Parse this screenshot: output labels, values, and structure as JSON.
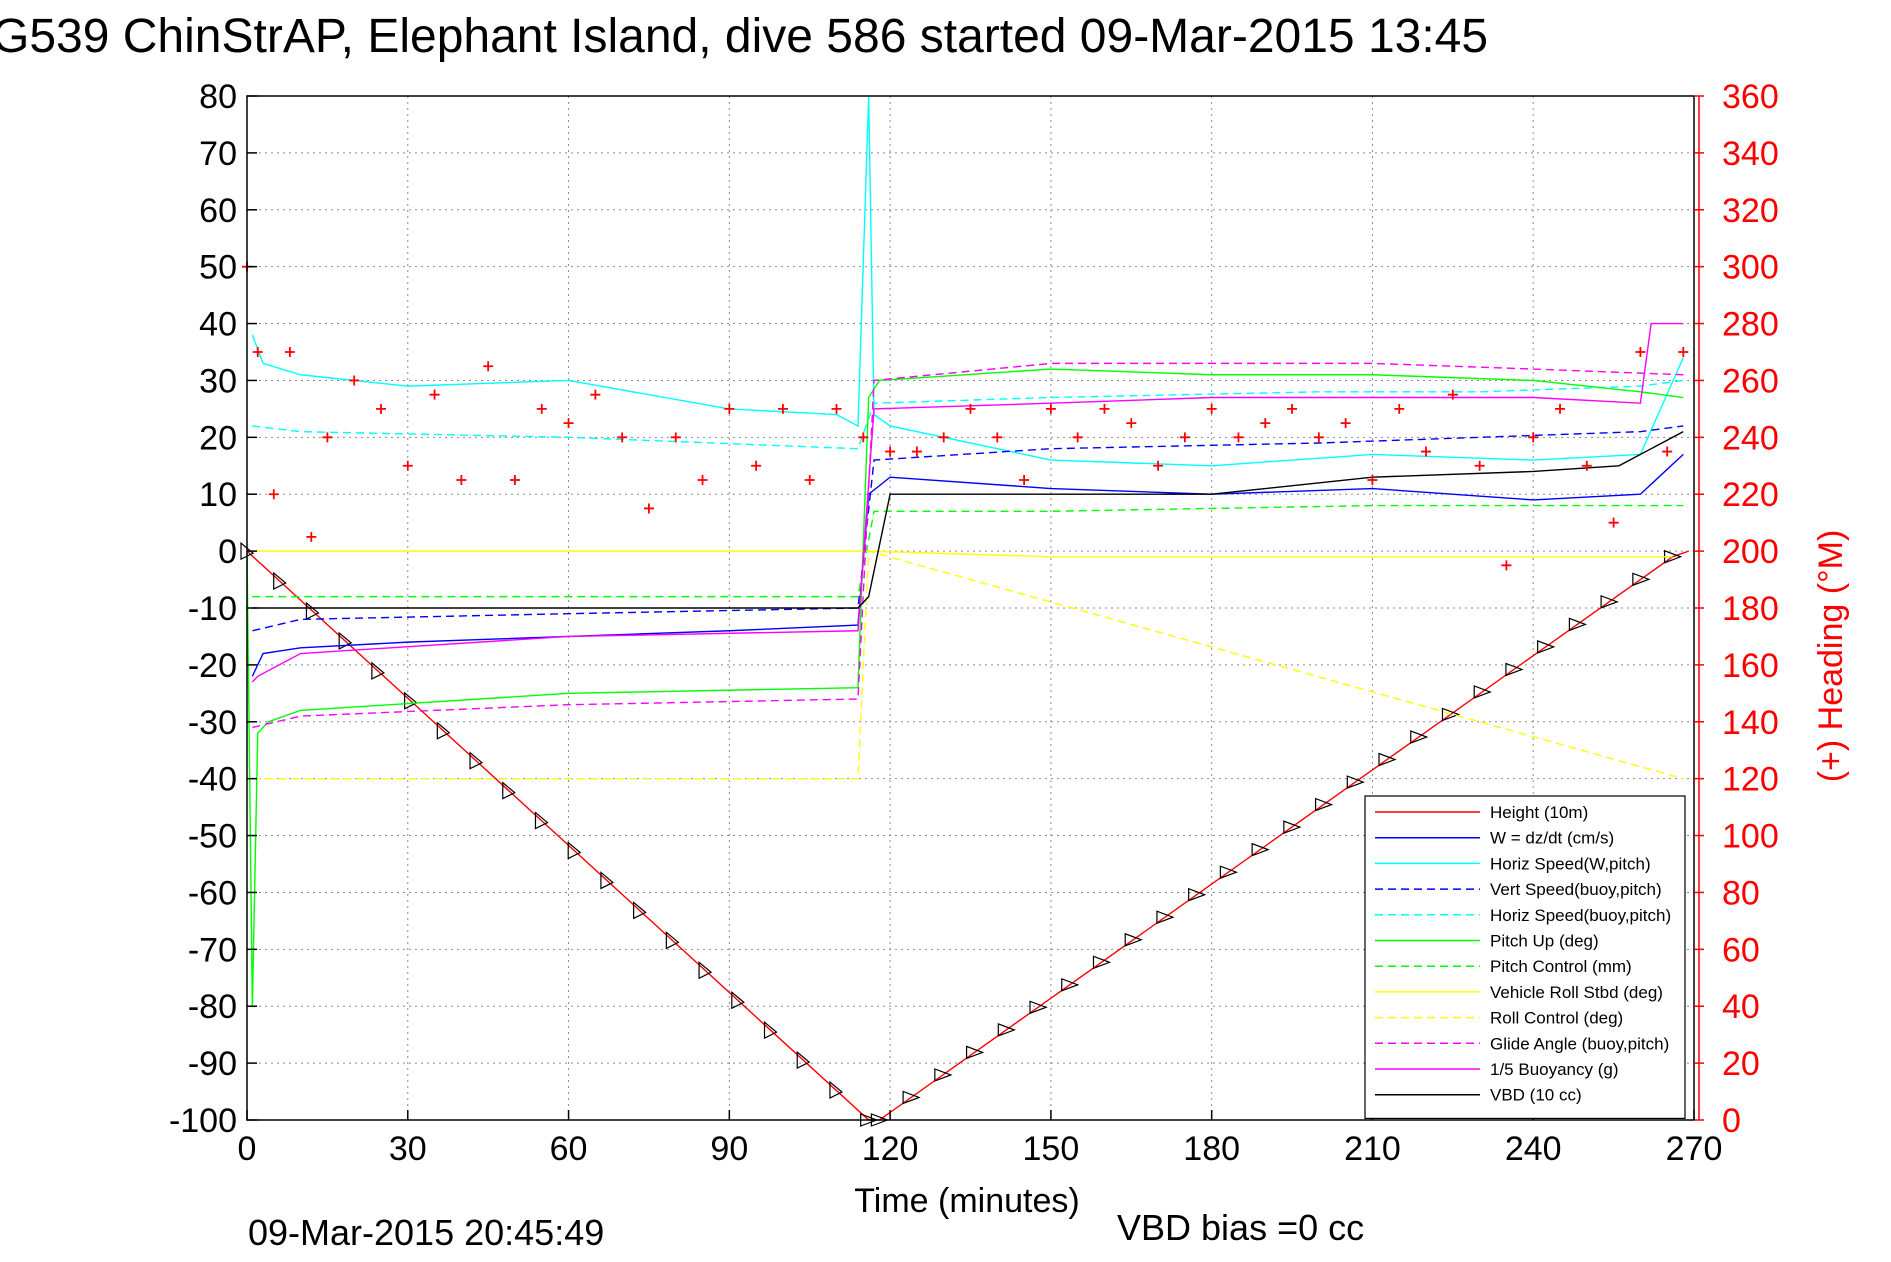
{
  "chart_data": {
    "type": "line",
    "title": "G539 ChinStrAP, Elephant Island, dive 586 started 09-Mar-2015 13:45",
    "xlabel": "Time (minutes)",
    "ylabel_right": "(+) Heading (°M)",
    "footer_left": "09-Mar-2015 20:45:49",
    "footer_right": "VBD bias =0 cc",
    "xlim": [
      0,
      270
    ],
    "ylim": [
      -100,
      80
    ],
    "ylim_right": [
      0,
      360
    ],
    "x_ticks": [
      0,
      30,
      60,
      90,
      120,
      150,
      180,
      210,
      240,
      270
    ],
    "y_ticks": [
      80,
      70,
      60,
      50,
      40,
      30,
      20,
      10,
      0,
      -10,
      -20,
      -30,
      -40,
      -50,
      -60,
      -70,
      -80,
      -90,
      -100
    ],
    "y_ticks_right": [
      360,
      340,
      320,
      300,
      280,
      260,
      240,
      220,
      200,
      180,
      160,
      140,
      120,
      100,
      80,
      60,
      40,
      20,
      0
    ],
    "grid": true,
    "legend_position": "bottom-right",
    "series": [
      {
        "name": "Height (10m)",
        "color": "#ff0000",
        "style": "solid",
        "x": [
          0,
          116,
          118,
          266,
          269
        ],
        "y": [
          0,
          -100,
          -100,
          -1,
          0
        ]
      },
      {
        "name": "W = dz/dt (cm/s)",
        "color": "#0000ff",
        "style": "solid",
        "x": [
          1,
          3,
          10,
          30,
          60,
          90,
          114,
          116,
          120,
          150,
          180,
          210,
          240,
          260,
          268
        ],
        "y": [
          -22,
          -18,
          -17,
          -16,
          -15,
          -14,
          -13,
          10,
          13,
          11,
          10,
          11,
          9,
          10,
          17
        ]
      },
      {
        "name": "Horiz Speed(W,pitch)",
        "color": "#00ffff",
        "style": "solid",
        "x": [
          1,
          3,
          10,
          30,
          60,
          90,
          110,
          114,
          116,
          117,
          120,
          150,
          180,
          210,
          240,
          260,
          268
        ],
        "y": [
          38,
          33,
          31,
          29,
          30,
          25,
          24,
          22,
          80,
          24,
          22,
          16,
          15,
          17,
          16,
          17,
          34
        ]
      },
      {
        "name": "Vert Speed(buoy,pitch)",
        "color": "#0000ff",
        "style": "dashed",
        "x": [
          1,
          10,
          60,
          114,
          117,
          150,
          200,
          230,
          260,
          268
        ],
        "y": [
          -14,
          -12,
          -11,
          -10,
          16,
          18,
          19,
          20,
          21,
          22
        ]
      },
      {
        "name": "Horiz Speed(buoy,pitch)",
        "color": "#00ffff",
        "style": "dashed",
        "x": [
          1,
          10,
          60,
          114,
          117,
          150,
          200,
          230,
          260,
          268
        ],
        "y": [
          22,
          21,
          20,
          18,
          26,
          27,
          28,
          28,
          29,
          30
        ]
      },
      {
        "name": "Pitch Up (deg)",
        "color": "#00ff00",
        "style": "solid",
        "x": [
          0,
          1,
          2,
          4,
          10,
          60,
          114,
          116,
          118,
          150,
          180,
          210,
          240,
          260,
          268
        ],
        "y": [
          0,
          -80,
          -32,
          -30,
          -28,
          -25,
          -24,
          27,
          30,
          32,
          31,
          31,
          30,
          28,
          27
        ]
      },
      {
        "name": "Pitch Control (mm)",
        "color": "#00ff00",
        "style": "dashed",
        "x": [
          1,
          114,
          117,
          150,
          210,
          268
        ],
        "y": [
          -8,
          -8,
          7,
          7,
          8,
          8
        ]
      },
      {
        "name": "Vehicle Roll Stbd (deg)",
        "color": "#ffff00",
        "style": "solid",
        "x": [
          1,
          114,
          116,
          150,
          210,
          266
        ],
        "y": [
          0,
          0,
          0,
          -1,
          -1,
          -1
        ]
      },
      {
        "name": "Roll Control (deg)",
        "color": "#ffff00",
        "style": "dashed",
        "x": [
          1,
          114,
          116,
          268
        ],
        "y": [
          -40,
          -40,
          0,
          -40
        ]
      },
      {
        "name": "Glide Angle (buoy,pitch)",
        "color": "#ff00ff",
        "style": "dashed",
        "x": [
          1,
          10,
          60,
          114,
          117,
          150,
          210,
          240,
          268
        ],
        "y": [
          -31,
          -29,
          -27,
          -26,
          30,
          33,
          33,
          32,
          31
        ]
      },
      {
        "name": "1/5 Buoyancy (g)",
        "color": "#ff00ff",
        "style": "solid",
        "x": [
          1,
          2,
          10,
          60,
          114,
          117,
          150,
          180,
          240,
          260,
          262,
          268
        ],
        "y": [
          -23,
          -22,
          -18,
          -15,
          -14,
          25,
          26,
          27,
          27,
          26,
          40,
          40
        ]
      },
      {
        "name": "VBD (10 cc)",
        "color": "#000000",
        "style": "solid",
        "x": [
          1,
          114,
          116,
          120,
          180,
          190,
          210,
          240,
          256,
          268
        ],
        "y": [
          -10,
          -10,
          -8,
          10,
          10,
          11,
          13,
          14,
          15,
          21
        ]
      },
      {
        "name": "Heading",
        "color": "#ff0000",
        "style": "markers",
        "axis": "right",
        "x": [
          0,
          2,
          5,
          8,
          12,
          15,
          20,
          25,
          30,
          35,
          40,
          45,
          50,
          55,
          60,
          65,
          70,
          75,
          80,
          85,
          90,
          95,
          100,
          105,
          110,
          115,
          120,
          125,
          130,
          135,
          140,
          145,
          150,
          155,
          160,
          165,
          170,
          175,
          180,
          185,
          190,
          195,
          200,
          205,
          210,
          215,
          220,
          225,
          230,
          235,
          240,
          245,
          250,
          255,
          260,
          265,
          268
        ],
        "y": [
          300,
          270,
          220,
          270,
          205,
          240,
          260,
          250,
          230,
          255,
          225,
          265,
          225,
          250,
          245,
          255,
          240,
          215,
          240,
          225,
          250,
          230,
          250,
          225,
          250,
          240,
          235,
          235,
          240,
          250,
          240,
          225,
          250,
          240,
          250,
          245,
          230,
          240,
          250,
          240,
          245,
          250,
          240,
          245,
          225,
          250,
          235,
          255,
          230,
          195,
          240,
          250,
          230,
          210,
          270,
          235,
          270
        ]
      }
    ]
  }
}
